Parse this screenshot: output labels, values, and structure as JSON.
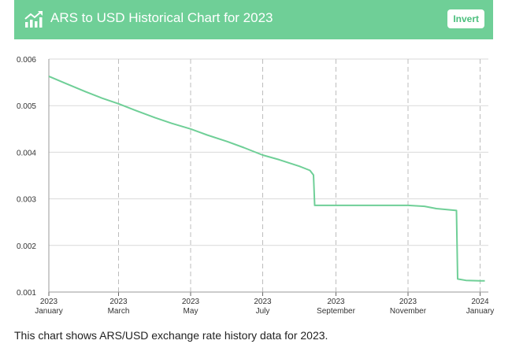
{
  "header": {
    "title": "ARS to USD Historical Chart for 2023",
    "icon": "trend-up-icon",
    "invert_label": "Invert",
    "background_color": "#6fcf97"
  },
  "caption": "This chart shows ARS/USD exchange rate history data for 2023.",
  "chart_data": {
    "type": "line",
    "title": "",
    "xlabel": "",
    "ylabel": "",
    "ylim": [
      0.001,
      0.006
    ],
    "xlim": [
      "2023-01-01",
      "2024-01-08"
    ],
    "grid": true,
    "line_color": "#6fcf97",
    "y_ticks": [
      "0.001",
      "0.002",
      "0.003",
      "0.004",
      "0.005",
      "0.006"
    ],
    "x_ticks": [
      {
        "date": "2023-01-01",
        "year": "2023",
        "month": "January"
      },
      {
        "date": "2023-03-01",
        "year": "2023",
        "month": "March"
      },
      {
        "date": "2023-05-01",
        "year": "2023",
        "month": "May"
      },
      {
        "date": "2023-07-01",
        "year": "2023",
        "month": "July"
      },
      {
        "date": "2023-09-01",
        "year": "2023",
        "month": "September"
      },
      {
        "date": "2023-11-01",
        "year": "2023",
        "month": "November"
      },
      {
        "date": "2024-01-01",
        "year": "2024",
        "month": "January"
      }
    ],
    "series": [
      {
        "points": [
          [
            "2023-01-01",
            0.00563
          ],
          [
            "2023-01-15",
            0.00548
          ],
          [
            "2023-02-01",
            0.0053
          ],
          [
            "2023-02-15",
            0.00516
          ],
          [
            "2023-03-01",
            0.00504
          ],
          [
            "2023-03-15",
            0.0049
          ],
          [
            "2023-04-01",
            0.00474
          ],
          [
            "2023-04-15",
            0.00462
          ],
          [
            "2023-05-01",
            0.0045
          ],
          [
            "2023-05-15",
            0.00437
          ],
          [
            "2023-06-01",
            0.00423
          ],
          [
            "2023-06-15",
            0.0041
          ],
          [
            "2023-07-01",
            0.00394
          ],
          [
            "2023-07-15",
            0.00384
          ],
          [
            "2023-08-01",
            0.0037
          ],
          [
            "2023-08-10",
            0.00361
          ],
          [
            "2023-08-13",
            0.00351
          ],
          [
            "2023-08-14",
            0.00286
          ],
          [
            "2023-09-01",
            0.00286
          ],
          [
            "2023-10-01",
            0.00286
          ],
          [
            "2023-11-01",
            0.00286
          ],
          [
            "2023-11-15",
            0.00284
          ],
          [
            "2023-11-25",
            0.00279
          ],
          [
            "2023-12-12",
            0.00275
          ],
          [
            "2023-12-13",
            0.00128
          ],
          [
            "2023-12-20",
            0.00125
          ],
          [
            "2024-01-01",
            0.00124
          ],
          [
            "2024-01-05",
            0.00124
          ]
        ]
      }
    ]
  }
}
